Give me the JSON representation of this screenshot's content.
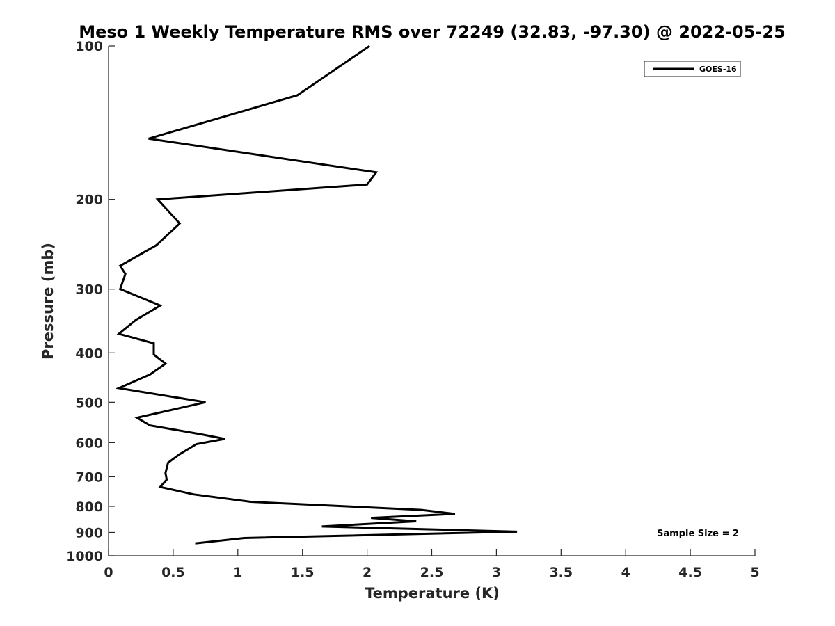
{
  "chart_data": {
    "type": "line",
    "title": "Meso 1 Weekly Temperature RMS over 72249 (32.83, -97.30) @ 2022-05-25",
    "xlabel": "Temperature (K)",
    "ylabel": "Pressure (mb)",
    "xlim": [
      0,
      5
    ],
    "ylim": [
      100,
      1000
    ],
    "yscale": "log",
    "y_reversed": true,
    "grid": false,
    "legend_position": "top-right",
    "x_ticks": [
      "0",
      "0.5",
      "1",
      "1.5",
      "2",
      "2.5",
      "3",
      "3.5",
      "4",
      "4.5",
      "5"
    ],
    "y_ticks": [
      "100",
      "200",
      "300",
      "400",
      "500",
      "600",
      "700",
      "800",
      "900",
      "1000"
    ],
    "annotation": "Sample Size = 2",
    "series": [
      {
        "name": "GOES-16",
        "color": "#000000",
        "x": [
          2.02,
          1.46,
          0.31,
          2.07,
          2.0,
          0.38,
          0.55,
          0.37,
          0.09,
          0.13,
          0.09,
          0.4,
          0.21,
          0.08,
          0.35,
          0.35,
          0.44,
          0.32,
          0.08,
          0.75,
          0.22,
          0.32,
          0.72,
          0.9,
          0.68,
          0.55,
          0.46,
          0.44,
          0.45,
          0.4,
          0.66,
          1.1,
          2.42,
          2.68,
          2.03,
          2.38,
          1.65,
          3.16,
          1.05,
          0.67
        ],
        "y": [
          100,
          125,
          152,
          177,
          187,
          200,
          223,
          246,
          270,
          280,
          300,
          323,
          345,
          367,
          383,
          403,
          420,
          441,
          469,
          500,
          536,
          555,
          578,
          590,
          604,
          632,
          657,
          688,
          709,
          733,
          758,
          784,
          813,
          828,
          843,
          856,
          876,
          897,
          923,
          946
        ]
      }
    ]
  }
}
